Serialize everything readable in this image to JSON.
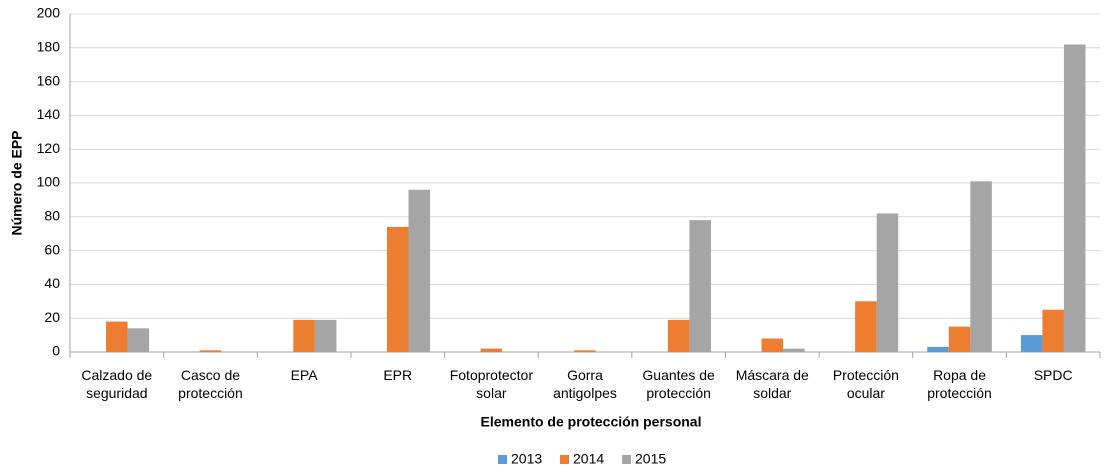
{
  "chart_data": {
    "type": "bar",
    "x_label": "Elemento de protección personal",
    "y_label": "Número de EPP",
    "categories": [
      "Calzado de seguridad",
      "Casco de protección",
      "EPA",
      "EPR",
      "Fotoprotector solar",
      "Gorra antigolpes",
      "Guantes de protección",
      "Máscara de soldar",
      "Protección ocular",
      "Ropa de protección",
      "SPDC"
    ],
    "series": [
      {
        "name": "2013",
        "color": "#5b9bd5",
        "values": [
          0,
          0,
          0,
          0,
          0,
          0,
          0,
          0,
          0,
          3,
          10
        ]
      },
      {
        "name": "2014",
        "color": "#ed7d31",
        "values": [
          18,
          1,
          19,
          74,
          2,
          1,
          19,
          8,
          30,
          15,
          25
        ]
      },
      {
        "name": "2015",
        "color": "#a5a5a5",
        "values": [
          14,
          0,
          19,
          96,
          0,
          0,
          78,
          2,
          82,
          101,
          182
        ]
      }
    ],
    "ylim": [
      0,
      200
    ],
    "yticks": [
      0,
      20,
      40,
      60,
      80,
      100,
      120,
      140,
      160,
      180,
      200
    ],
    "grid": true,
    "legend": "bottom"
  }
}
